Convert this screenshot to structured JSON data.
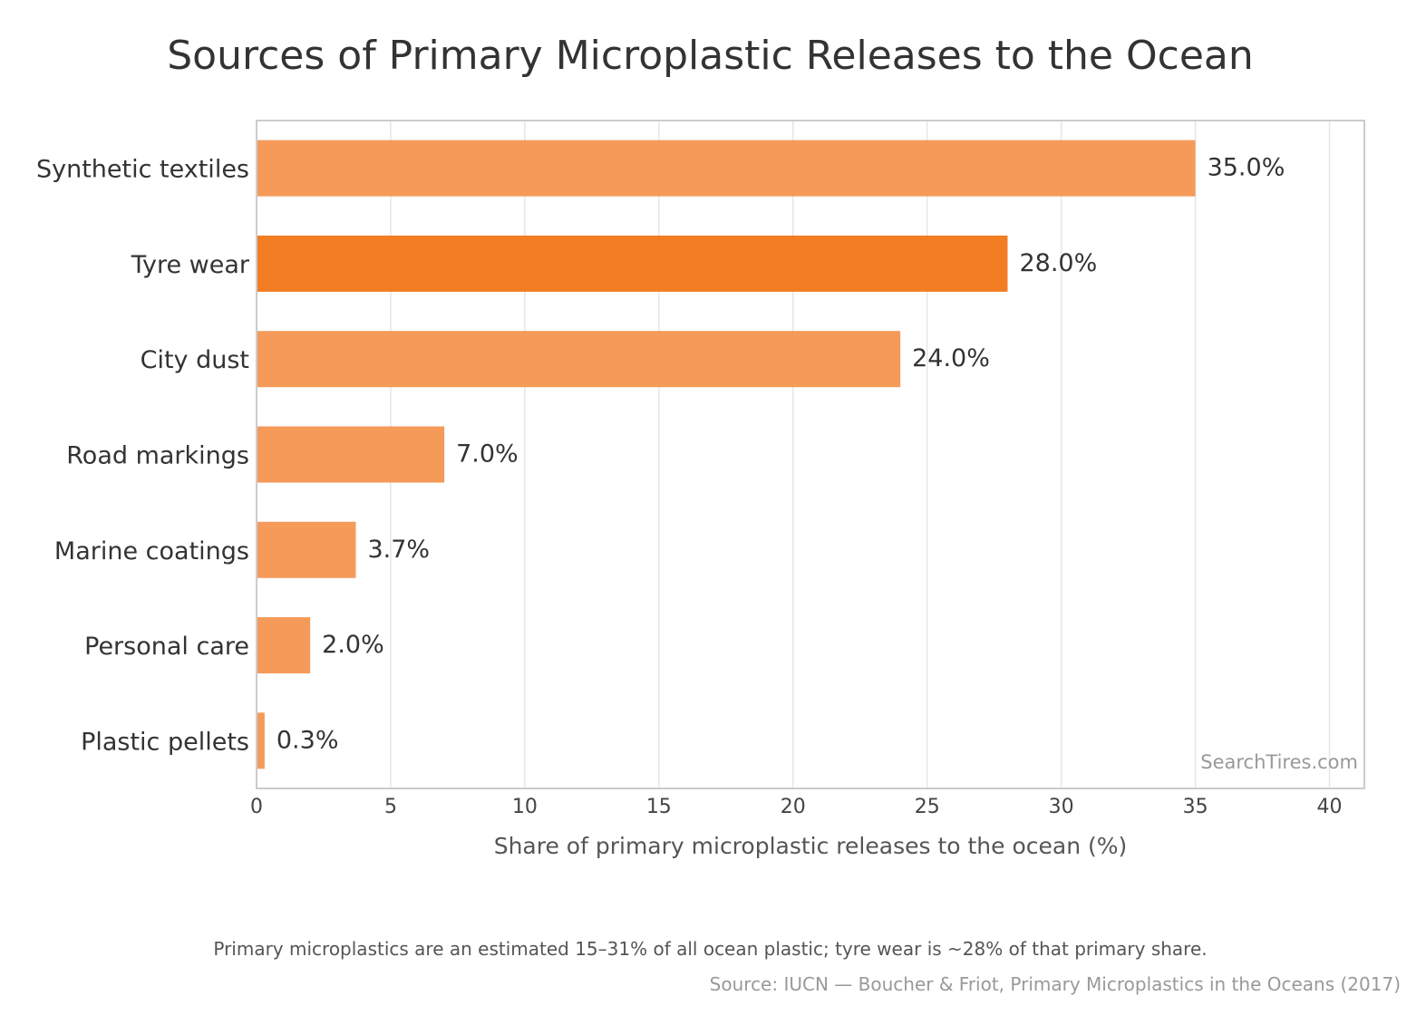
{
  "chart_data": {
    "type": "bar",
    "orientation": "horizontal",
    "title": "Sources of Primary Microplastic Releases to the Ocean",
    "categories": [
      "Synthetic textiles",
      "Tyre wear",
      "City dust",
      "Road markings",
      "Marine coatings",
      "Personal care",
      "Plastic pellets"
    ],
    "values": [
      35.0,
      28.0,
      24.0,
      7.0,
      3.7,
      2.0,
      0.3
    ],
    "value_labels": [
      "35.0%",
      "28.0%",
      "24.0%",
      "7.0%",
      "3.7%",
      "2.0%",
      "0.3%"
    ],
    "highlighted_category": "Tyre wear",
    "xlabel": "Share of primary microplastic releases to the ocean (%)",
    "ylabel": "",
    "xlim": [
      0,
      41.3
    ],
    "xticks": [
      0,
      5,
      10,
      15,
      20,
      25,
      30,
      35,
      40
    ],
    "grid": "vertical",
    "colors": {
      "bar": "#f59a59",
      "highlight": "#f37d22",
      "grid": "#e6e6e6",
      "frame": "#cccccc"
    },
    "watermark": "SearchTires.com",
    "footnote": "Primary microplastics are an estimated 15–31% of all ocean plastic; tyre wear is ~28% of that primary share.",
    "source": "Source: IUCN — Boucher & Friot, Primary Microplastics in the Oceans (2017)"
  }
}
